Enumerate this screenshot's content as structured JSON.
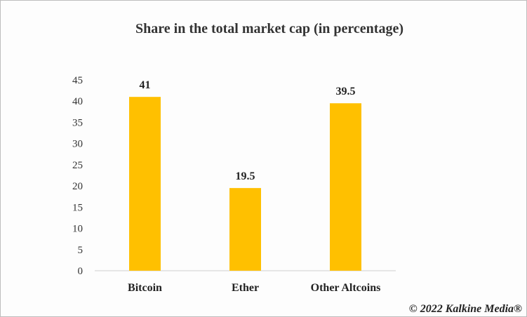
{
  "chart_data": {
    "type": "bar",
    "title": "Share in  the total market cap (in percentage)",
    "categories": [
      "Bitcoin",
      "Ether",
      "Other Altcoins"
    ],
    "values": [
      41,
      19.5,
      39.5
    ],
    "data_labels": [
      "41",
      "19.5",
      "39.5"
    ],
    "xlabel": "",
    "ylabel": "",
    "ylim": [
      0,
      45
    ],
    "yticks": [
      0,
      5,
      10,
      15,
      20,
      25,
      30,
      35,
      40,
      45
    ],
    "grid": false,
    "legend": "none",
    "bar_color": "#FFC000"
  },
  "copyright": "© 2022 Kalkine Media®"
}
